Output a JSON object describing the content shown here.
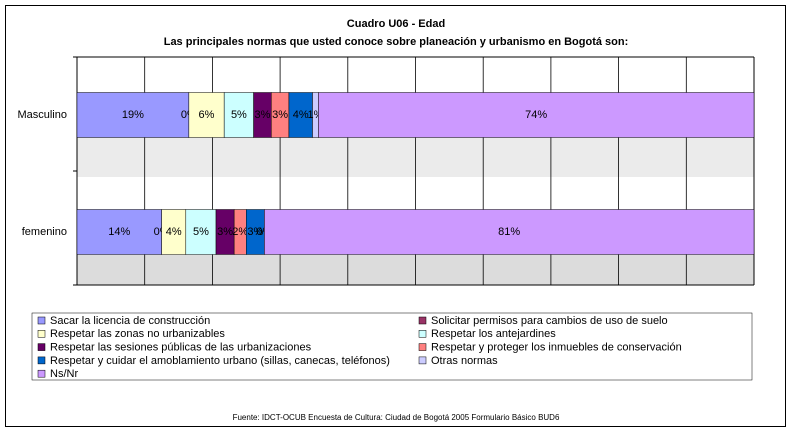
{
  "chart_data": {
    "type": "bar",
    "orientation": "horizontal",
    "stacking": "percent",
    "title": "Cuadro U06 - Edad",
    "subtitle": "Las principales normas que usted conoce sobre planeación y urbanismo en Bogotá son:",
    "source": "Fuente: IDCT-OCUB Encuesta de Cultura: Ciudad de Bogotá 2005 Formulario Básico BUD6",
    "categories": [
      "Masculino",
      "femenino"
    ],
    "grid": true,
    "series": [
      {
        "name": "Sacar la licencia de construcción",
        "color": "#9999ff",
        "values": [
          19,
          14
        ],
        "value_labels": [
          "19%",
          "14%"
        ]
      },
      {
        "name": "Solicitar permisos para cambios de uso de suelo",
        "color": "#993366",
        "values": [
          0,
          0
        ],
        "value_labels": [
          "0%",
          "0%"
        ]
      },
      {
        "name": "Respetar las zonas no urbanizables",
        "color": "#ffffcc",
        "values": [
          6,
          4
        ],
        "value_labels": [
          "6%",
          "4%"
        ]
      },
      {
        "name": "Respetar los antejardines",
        "color": "#ccffff",
        "values": [
          5,
          5
        ],
        "value_labels": [
          "5%",
          "5%"
        ]
      },
      {
        "name": "Respetar las sesiones públicas de las urbanizaciones",
        "color": "#660066",
        "values": [
          3,
          3
        ],
        "value_labels": [
          "3%",
          "3%"
        ]
      },
      {
        "name": "Respetar y proteger los inmuebles de conservación",
        "color": "#ff8080",
        "values": [
          3,
          2
        ],
        "value_labels": [
          "3%",
          "2%"
        ]
      },
      {
        "name": "Respetar y cuidar el amoblamiento urbano (sillas, canecas, teléfonos)",
        "color": "#0066cc",
        "values": [
          4,
          3
        ],
        "value_labels": [
          "4%",
          "3%"
        ]
      },
      {
        "name": "Otras normas",
        "color": "#ccccff",
        "values": [
          1,
          0
        ],
        "value_labels": [
          "1%",
          "0%"
        ]
      },
      {
        "name": "Ns/Nr",
        "color": "#cc99ff",
        "values": [
          74,
          81
        ],
        "value_labels": [
          "74%",
          "81%"
        ]
      }
    ]
  }
}
